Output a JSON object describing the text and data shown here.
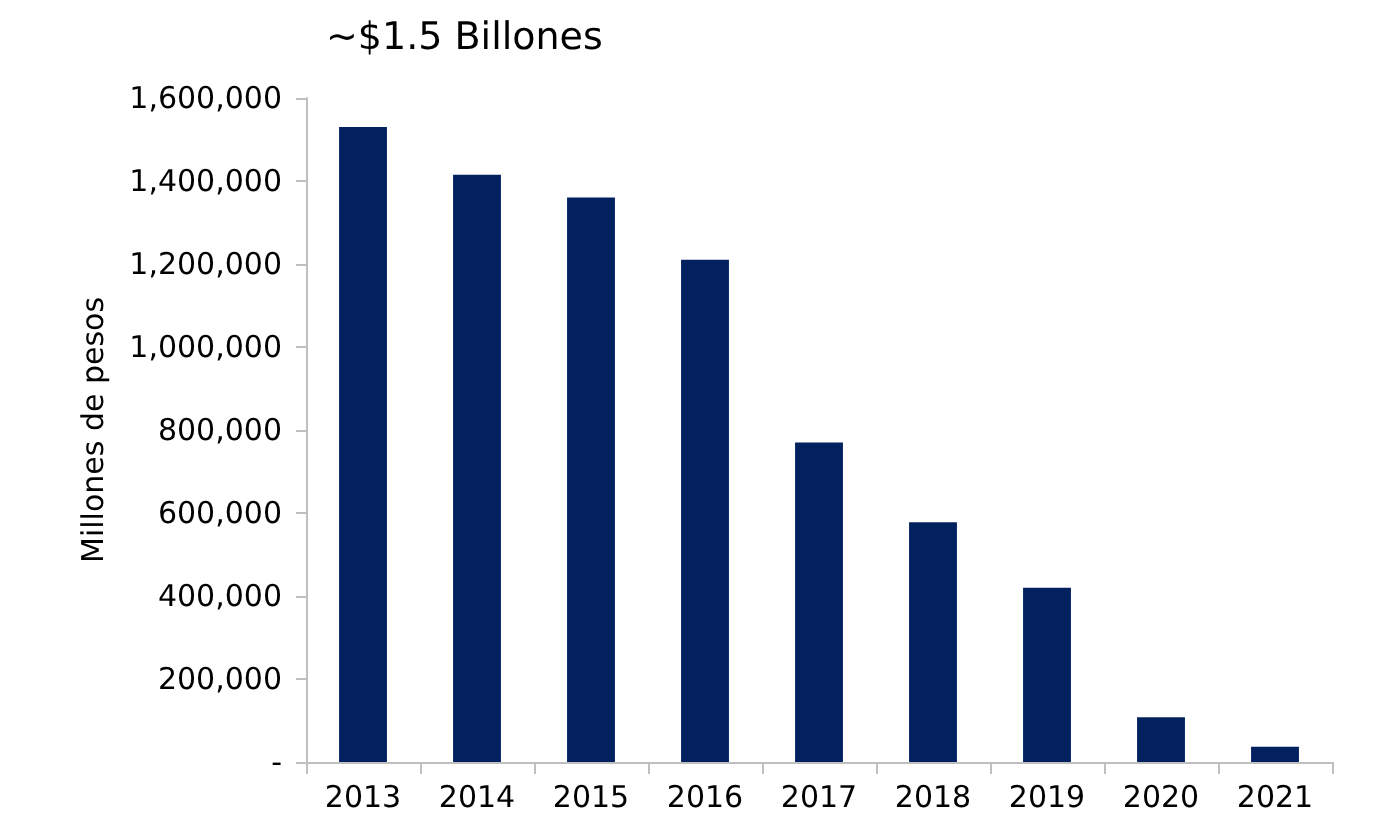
{
  "chart_data": {
    "type": "bar",
    "title": "~$1.5 Billones",
    "ylabel": "Millones de pesos",
    "categories": [
      "2013",
      "2014",
      "2015",
      "2016",
      "2017",
      "2018",
      "2019",
      "2020",
      "2021"
    ],
    "series": [
      {
        "color": "#03215f",
        "values": [
          1530000,
          1415000,
          1360000,
          1210000,
          770000,
          578000,
          420000,
          108000,
          37000
        ]
      }
    ],
    "ylim": [
      0,
      1600000
    ],
    "yticks": [
      {
        "value": 0,
        "label": "-"
      },
      {
        "value": 200000,
        "label": "200,000"
      },
      {
        "value": 400000,
        "label": "400,000"
      },
      {
        "value": 600000,
        "label": "600,000"
      },
      {
        "value": 800000,
        "label": "800,000"
      },
      {
        "value": 1000000,
        "label": "1,000,000"
      },
      {
        "value": 1200000,
        "label": "1,200,000"
      },
      {
        "value": 1400000,
        "label": "1,400,000"
      },
      {
        "value": 1600000,
        "label": "1,600,000"
      }
    ],
    "grid": false
  }
}
